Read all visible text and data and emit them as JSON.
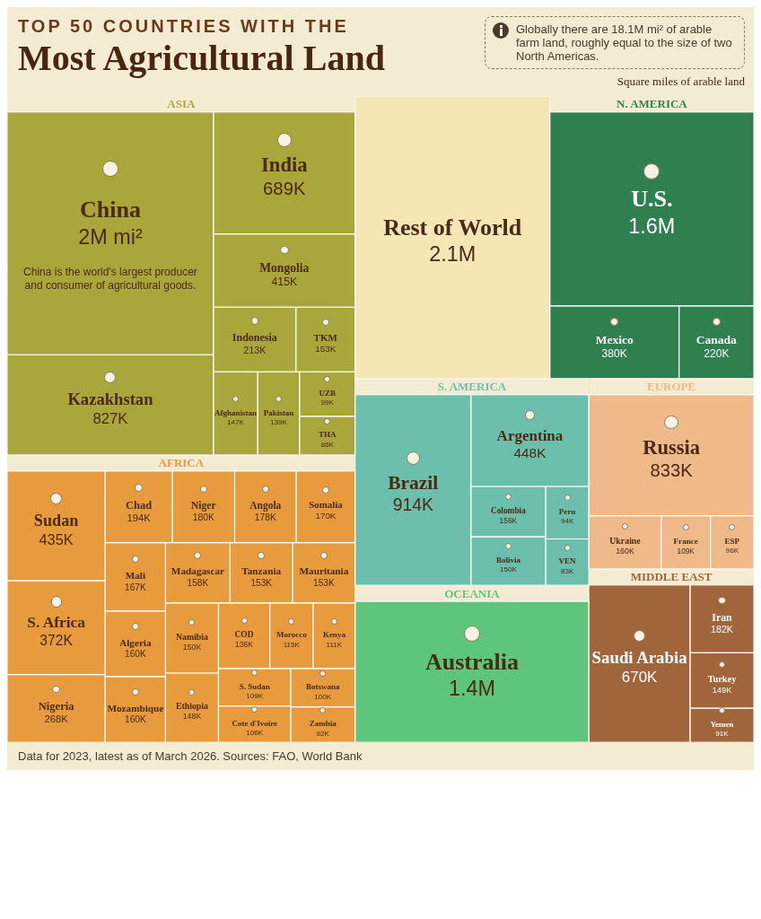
{
  "chart_data": {
    "type": "other",
    "subtitle": "TOP 50 COUNTRIES WITH THE",
    "title": "Most Agricultural Land",
    "annotations": [
      "Globally there are 18.1M mi² of arable farm land, roughly equal to the size of two North Americas.",
      "Square miles of arable land",
      {
        "text": "China is the world's largest producer and consumer of agricultural goods.",
        "x": "China"
      },
      "Data for 2023, latest as of March 2026. Sources: FAO, World Bank"
    ],
    "categories": [
      "China",
      "Kazakhstan",
      "India",
      "Mongolia",
      "Indonesia",
      "TKM",
      "Afghanistan",
      "Pakistan",
      "UZB",
      "THA",
      "Sudan",
      "S. Africa",
      "Nigeria",
      "Chad",
      "Niger",
      "Angola",
      "Somalia",
      "Mali",
      "Algeria",
      "Mozambique",
      "Madagascar",
      "Tanzania",
      "Mauritania",
      "Namibia",
      "Ethiopia",
      "COD",
      "Morocco",
      "Kenya",
      "S. Sudan",
      "Cote d'Ivoire",
      "Botswana",
      "Zambia",
      "Rest of World",
      "U.S.",
      "Mexico",
      "Canada",
      "Brazil",
      "Argentina",
      "Colombia",
      "Bolivia",
      "Peru",
      "VEN",
      "Australia",
      "Russia",
      "Ukraine",
      "France",
      "ESP",
      "Saudi Arabia",
      "Iran",
      "Turkey",
      "Yemen"
    ],
    "series": [
      {
        "name": "ASIA",
        "color": "#a9a63c",
        "values": [
          2000000,
          827000,
          689000,
          415000,
          213000,
          153000,
          147000,
          139000,
          99000,
          86000,
          null,
          null,
          null,
          null,
          null,
          null,
          null,
          null,
          null,
          null,
          null,
          null,
          null,
          null,
          null,
          null,
          null,
          null,
          null,
          null,
          null,
          null,
          null,
          null,
          null,
          null,
          null,
          null,
          null,
          null,
          null,
          null,
          null,
          null,
          null,
          null,
          null,
          null,
          null,
          null,
          null
        ],
        "value_labels": [
          "2M mi²",
          "827K",
          "689K",
          "415K",
          "213K",
          "153K",
          "147K",
          "139K",
          "99K",
          "86K",
          null,
          null,
          null,
          null,
          null,
          null,
          null,
          null,
          null,
          null,
          null,
          null,
          null,
          null,
          null,
          null,
          null,
          null,
          null,
          null,
          null,
          null,
          null,
          null,
          null,
          null,
          null,
          null,
          null,
          null,
          null,
          null,
          null,
          null,
          null,
          null,
          null,
          null,
          null,
          null,
          null
        ]
      },
      {
        "name": "AFRICA",
        "color": "#e89b3d",
        "values": [
          null,
          null,
          null,
          null,
          null,
          null,
          null,
          null,
          null,
          null,
          435000,
          372000,
          268000,
          194000,
          180000,
          178000,
          170000,
          167000,
          160000,
          160000,
          158000,
          153000,
          153000,
          150000,
          148000,
          136000,
          115000,
          111000,
          109000,
          106000,
          100000,
          92000,
          null,
          null,
          null,
          null,
          null,
          null,
          null,
          null,
          null,
          null,
          null,
          null,
          null,
          null,
          null,
          null,
          null,
          null,
          null
        ],
        "value_labels": [
          null,
          null,
          null,
          null,
          null,
          null,
          null,
          null,
          null,
          null,
          "435K",
          "372K",
          "268K",
          "194K",
          "180K",
          "178K",
          "170K",
          "167K",
          "160K",
          "160K",
          "158K",
          "153K",
          "153K",
          "150K",
          "148K",
          "136K",
          "115K",
          "111K",
          "109K",
          "106K",
          "100K",
          "92K",
          null,
          null,
          null,
          null,
          null,
          null,
          null,
          null,
          null,
          null,
          null,
          null,
          null,
          null,
          null,
          null,
          null,
          null,
          null
        ]
      },
      {
        "color": "#f4e7b5",
        "values": [
          null,
          null,
          null,
          null,
          null,
          null,
          null,
          null,
          null,
          null,
          null,
          null,
          null,
          null,
          null,
          null,
          null,
          null,
          null,
          null,
          null,
          null,
          null,
          null,
          null,
          null,
          null,
          null,
          null,
          null,
          null,
          null,
          2100000,
          null,
          null,
          null,
          null,
          null,
          null,
          null,
          null,
          null,
          null,
          null,
          null,
          null,
          null,
          null,
          null,
          null,
          null
        ],
        "value_labels": [
          null,
          null,
          null,
          null,
          null,
          null,
          null,
          null,
          null,
          null,
          null,
          null,
          null,
          null,
          null,
          null,
          null,
          null,
          null,
          null,
          null,
          null,
          null,
          null,
          null,
          null,
          null,
          null,
          null,
          null,
          null,
          null,
          "2.1M",
          null,
          null,
          null,
          null,
          null,
          null,
          null,
          null,
          null,
          null,
          null,
          null,
          null,
          null,
          null,
          null,
          null,
          null
        ]
      },
      {
        "name": "N. AMERICA",
        "color": "#2f7f4f",
        "values": [
          null,
          null,
          null,
          null,
          null,
          null,
          null,
          null,
          null,
          null,
          null,
          null,
          null,
          null,
          null,
          null,
          null,
          null,
          null,
          null,
          null,
          null,
          null,
          null,
          null,
          null,
          null,
          null,
          null,
          null,
          null,
          null,
          null,
          1600000,
          380000,
          220000,
          null,
          null,
          null,
          null,
          null,
          null,
          null,
          null,
          null,
          null,
          null,
          null,
          null,
          null,
          null
        ],
        "value_labels": [
          null,
          null,
          null,
          null,
          null,
          null,
          null,
          null,
          null,
          null,
          null,
          null,
          null,
          null,
          null,
          null,
          null,
          null,
          null,
          null,
          null,
          null,
          null,
          null,
          null,
          null,
          null,
          null,
          null,
          null,
          null,
          null,
          null,
          "1.6M",
          "380K",
          "220K",
          null,
          null,
          null,
          null,
          null,
          null,
          null,
          null,
          null,
          null,
          null,
          null,
          null,
          null,
          null
        ]
      },
      {
        "name": "S. AMERICA",
        "color": "#6cbfad",
        "values": [
          null,
          null,
          null,
          null,
          null,
          null,
          null,
          null,
          null,
          null,
          null,
          null,
          null,
          null,
          null,
          null,
          null,
          null,
          null,
          null,
          null,
          null,
          null,
          null,
          null,
          null,
          null,
          null,
          null,
          null,
          null,
          null,
          null,
          null,
          null,
          null,
          914000,
          448000,
          156000,
          150000,
          94000,
          83000,
          null,
          null,
          null,
          null,
          null,
          null,
          null,
          null,
          null
        ],
        "value_labels": [
          null,
          null,
          null,
          null,
          null,
          null,
          null,
          null,
          null,
          null,
          null,
          null,
          null,
          null,
          null,
          null,
          null,
          null,
          null,
          null,
          null,
          null,
          null,
          null,
          null,
          null,
          null,
          null,
          null,
          null,
          null,
          null,
          null,
          null,
          null,
          null,
          "914K",
          "448K",
          "156K",
          "150K",
          "94K",
          "83K",
          null,
          null,
          null,
          null,
          null,
          null,
          null,
          null,
          null
        ]
      },
      {
        "name": "OCEANIA",
        "color": "#5dc67c",
        "values": [
          null,
          null,
          null,
          null,
          null,
          null,
          null,
          null,
          null,
          null,
          null,
          null,
          null,
          null,
          null,
          null,
          null,
          null,
          null,
          null,
          null,
          null,
          null,
          null,
          null,
          null,
          null,
          null,
          null,
          null,
          null,
          null,
          null,
          null,
          null,
          null,
          null,
          null,
          null,
          null,
          null,
          null,
          1400000,
          null,
          null,
          null,
          null,
          null,
          null,
          null,
          null
        ],
        "value_labels": [
          null,
          null,
          null,
          null,
          null,
          null,
          null,
          null,
          null,
          null,
          null,
          null,
          null,
          null,
          null,
          null,
          null,
          null,
          null,
          null,
          null,
          null,
          null,
          null,
          null,
          null,
          null,
          null,
          null,
          null,
          null,
          null,
          null,
          null,
          null,
          null,
          null,
          null,
          null,
          null,
          null,
          null,
          "1.4M",
          null,
          null,
          null,
          null,
          null,
          null,
          null,
          null
        ]
      },
      {
        "name": "EUROPE",
        "color": "#f0b98a",
        "values": [
          null,
          null,
          null,
          null,
          null,
          null,
          null,
          null,
          null,
          null,
          null,
          null,
          null,
          null,
          null,
          null,
          null,
          null,
          null,
          null,
          null,
          null,
          null,
          null,
          null,
          null,
          null,
          null,
          null,
          null,
          null,
          null,
          null,
          null,
          null,
          null,
          null,
          null,
          null,
          null,
          null,
          null,
          null,
          833000,
          160000,
          109000,
          96000,
          null,
          null,
          null,
          null
        ],
        "value_labels": [
          null,
          null,
          null,
          null,
          null,
          null,
          null,
          null,
          null,
          null,
          null,
          null,
          null,
          null,
          null,
          null,
          null,
          null,
          null,
          null,
          null,
          null,
          null,
          null,
          null,
          null,
          null,
          null,
          null,
          null,
          null,
          null,
          null,
          null,
          null,
          null,
          null,
          null,
          null,
          null,
          null,
          null,
          null,
          "833K",
          "160K",
          "109K",
          "96K",
          null,
          null,
          null,
          null
        ]
      },
      {
        "name": "MIDDLE EAST",
        "color": "#a1653b",
        "values": [
          null,
          null,
          null,
          null,
          null,
          null,
          null,
          null,
          null,
          null,
          null,
          null,
          null,
          null,
          null,
          null,
          null,
          null,
          null,
          null,
          null,
          null,
          null,
          null,
          null,
          null,
          null,
          null,
          null,
          null,
          null,
          null,
          null,
          null,
          null,
          null,
          null,
          null,
          null,
          null,
          null,
          null,
          null,
          null,
          null,
          null,
          null,
          670000,
          182000,
          149000,
          91000
        ],
        "value_labels": [
          null,
          null,
          null,
          null,
          null,
          null,
          null,
          null,
          null,
          null,
          null,
          null,
          null,
          null,
          null,
          null,
          null,
          null,
          null,
          null,
          null,
          null,
          null,
          null,
          null,
          null,
          null,
          null,
          null,
          null,
          null,
          null,
          null,
          null,
          null,
          null,
          null,
          null,
          null,
          null,
          null,
          null,
          null,
          null,
          null,
          null,
          null,
          "670K",
          "182K",
          "149K",
          "91K"
        ]
      }
    ]
  }
}
